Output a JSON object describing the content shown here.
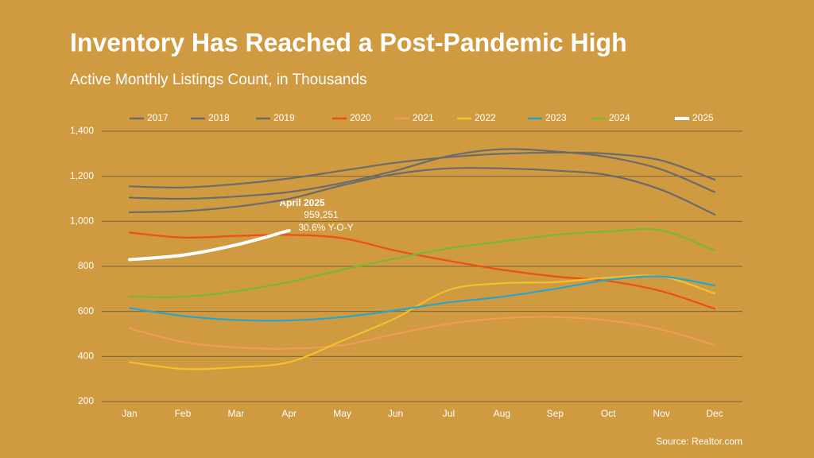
{
  "chart_data": {
    "type": "line",
    "title": "Inventory Has Reached a Post-Pandemic High",
    "subtitle": "Active Monthly Listings Count, in Thousands",
    "categories": [
      "Jan",
      "Feb",
      "Mar",
      "Apr",
      "May",
      "Jun",
      "Jul",
      "Aug",
      "Sep",
      "Oct",
      "Nov",
      "Dec"
    ],
    "series": [
      {
        "name": "2017",
        "color": "#6b6b6b",
        "values": [
          1105,
          1100,
          1110,
          1130,
          1170,
          1225,
          1290,
          1320,
          1310,
          1285,
          1230,
          1130
        ]
      },
      {
        "name": "2018",
        "color": "#6b6b6b",
        "values": [
          1155,
          1150,
          1165,
          1190,
          1225,
          1260,
          1285,
          1300,
          1305,
          1300,
          1270,
          1185
        ]
      },
      {
        "name": "2019",
        "color": "#6b6b6b",
        "values": [
          1040,
          1045,
          1065,
          1100,
          1160,
          1210,
          1235,
          1235,
          1225,
          1205,
          1140,
          1030
        ]
      },
      {
        "name": "2020",
        "color": "#f04e12",
        "values": [
          950,
          928,
          935,
          940,
          925,
          870,
          825,
          785,
          755,
          735,
          690,
          612
        ]
      },
      {
        "name": "2021",
        "color": "#f39a5a",
        "values": [
          525,
          465,
          440,
          435,
          450,
          500,
          545,
          570,
          575,
          560,
          520,
          450
        ]
      },
      {
        "name": "2022",
        "color": "#f2c12e",
        "values": [
          375,
          345,
          352,
          375,
          470,
          570,
          695,
          725,
          730,
          750,
          755,
          680
        ]
      },
      {
        "name": "2023",
        "color": "#2aa5c9",
        "values": [
          615,
          580,
          562,
          560,
          575,
          605,
          640,
          665,
          700,
          740,
          755,
          715
        ]
      },
      {
        "name": "2024",
        "color": "#7ab82c",
        "values": [
          665,
          665,
          690,
          730,
          785,
          835,
          880,
          910,
          940,
          955,
          960,
          870
        ]
      },
      {
        "name": "2025",
        "color": "#ffffff",
        "values": [
          830,
          850,
          895,
          959.251,
          null,
          null,
          null,
          null,
          null,
          null,
          null,
          null
        ]
      }
    ],
    "ylim": [
      200,
      1400
    ],
    "yticks": [
      200,
      400,
      600,
      800,
      {
        "value": 1000,
        "label": "1,000"
      },
      {
        "value": 1200,
        "label": "1,200"
      },
      {
        "value": 1400,
        "label": "1,400"
      }
    ],
    "grid": true,
    "annotation": {
      "title": "April 2025",
      "value": "959,251",
      "change": "30.6% Y-O-Y"
    },
    "source": "Source: Realtor.com"
  }
}
